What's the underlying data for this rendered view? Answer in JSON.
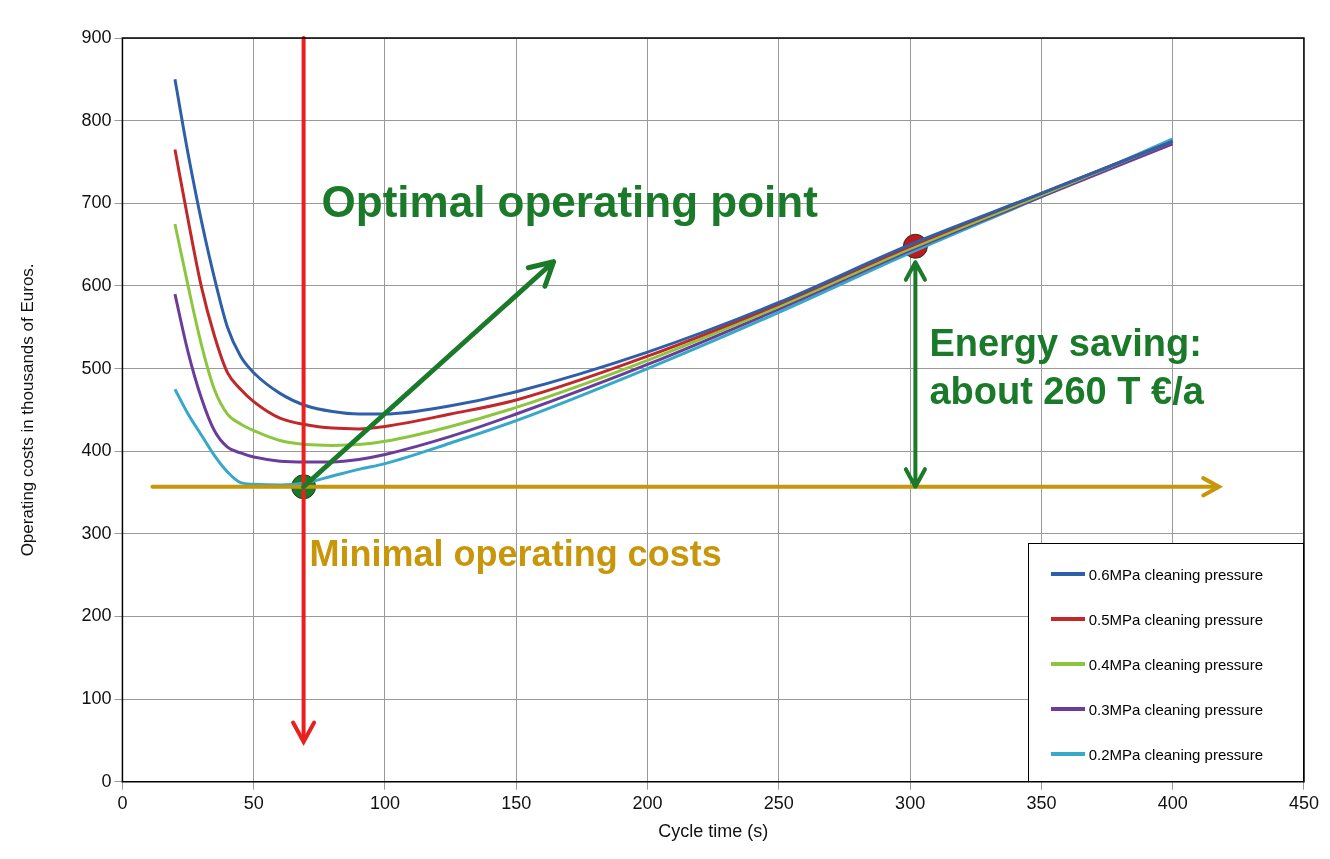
{
  "chart_data": {
    "type": "line",
    "xlabel": "Cycle time (s)",
    "ylabel": "Operating costs in thousands of Euros.",
    "xlim": [
      0,
      450
    ],
    "xticks": [
      0,
      50,
      100,
      150,
      200,
      250,
      300,
      350,
      400,
      450
    ],
    "ylim": [
      0,
      900
    ],
    "yticks": [
      0,
      100,
      200,
      300,
      400,
      500,
      600,
      700,
      800,
      900
    ],
    "grid": true,
    "legend": "bottom right",
    "marker": "none",
    "line_style": "solid",
    "series": [
      {
        "name": "0.6MPa cleaning pressure",
        "color": "#2f5fa8",
        "x": [
          20,
          25,
          30,
          35,
          40,
          45,
          50,
          60,
          70,
          80,
          90,
          100,
          125,
          150,
          200,
          250,
          300,
          350,
          400
        ],
        "values": [
          850,
          760,
          680,
          610,
          550,
          515,
          495,
          470,
          455,
          448,
          445,
          445,
          455,
          472,
          520,
          580,
          650,
          712,
          775
        ]
      },
      {
        "name": "0.5MPa cleaning pressure",
        "color": "#c0282a",
        "x": [
          20,
          25,
          30,
          35,
          40,
          45,
          50,
          60,
          70,
          80,
          90,
          100,
          125,
          150,
          200,
          250,
          300,
          350,
          400
        ],
        "values": [
          765,
          680,
          600,
          540,
          495,
          475,
          460,
          440,
          432,
          428,
          427,
          430,
          445,
          462,
          515,
          578,
          648,
          712,
          775
        ]
      },
      {
        "name": "0.4MPa cleaning pressure",
        "color": "#8cc63f",
        "x": [
          20,
          25,
          30,
          35,
          40,
          45,
          50,
          60,
          70,
          80,
          90,
          100,
          125,
          150,
          200,
          250,
          300,
          350,
          400
        ],
        "values": [
          675,
          600,
          530,
          475,
          445,
          433,
          425,
          413,
          408,
          407,
          408,
          412,
          430,
          453,
          510,
          575,
          645,
          710,
          775
        ]
      },
      {
        "name": "0.3MPa cleaning pressure",
        "color": "#6a3d9a",
        "x": [
          20,
          25,
          30,
          35,
          40,
          45,
          50,
          60,
          70,
          80,
          90,
          100,
          125,
          150,
          200,
          250,
          300,
          350,
          400
        ],
        "values": [
          590,
          520,
          465,
          425,
          405,
          398,
          393,
          388,
          387,
          387,
          390,
          396,
          418,
          445,
          505,
          572,
          643,
          708,
          772
        ]
      },
      {
        "name": "0.2MPa cleaning pressure",
        "color": "#36a9c9",
        "x": [
          20,
          25,
          30,
          35,
          40,
          45,
          50,
          60,
          70,
          80,
          90,
          100,
          125,
          150,
          200,
          250,
          300,
          350,
          400
        ],
        "values": [
          475,
          445,
          420,
          395,
          375,
          362,
          360,
          359,
          362,
          370,
          378,
          385,
          410,
          437,
          500,
          568,
          640,
          708,
          778
        ]
      },
      {
        "type": "scatter",
        "marker": "circle",
        "color": "#1a7a2a",
        "x": [
          69
        ],
        "values": [
          357
        ]
      },
      {
        "type": "scatter",
        "marker": "circle",
        "color": "#c0181c",
        "x": [
          302
        ],
        "values": [
          648
        ]
      }
    ],
    "ref_lines": [
      {
        "axis": "x",
        "value": 69,
        "color": "#e8211f"
      },
      {
        "axis": "y",
        "value": 357,
        "color": "#c8960a"
      }
    ],
    "annotations": [
      {
        "text": "Optimal operating point",
        "x": 69,
        "y": 357
      },
      "Minimal operating costs",
      "Energy saving: about 260 T €/a"
    ]
  }
}
